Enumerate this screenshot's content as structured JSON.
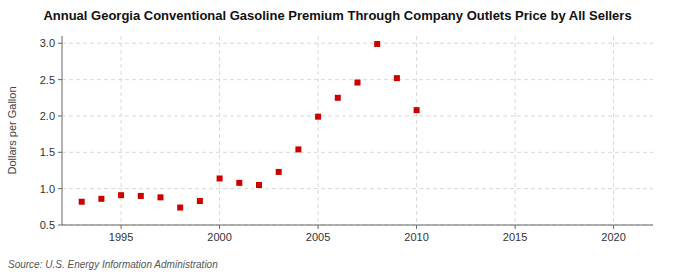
{
  "chart_data": {
    "type": "scatter",
    "title": "Annual Georgia Conventional Gasoline Premium Through Company Outlets Price by All Sellers",
    "ylabel": "Dollars per Gallon",
    "source": "Source: U.S. Energy Information Administration",
    "x": [
      1993,
      1994,
      1995,
      1996,
      1997,
      1998,
      1999,
      2000,
      2001,
      2002,
      2003,
      2004,
      2005,
      2006,
      2007,
      2008,
      2009,
      2010
    ],
    "values": [
      0.82,
      0.86,
      0.91,
      0.9,
      0.88,
      0.74,
      0.83,
      1.14,
      1.08,
      1.05,
      1.23,
      1.54,
      1.99,
      2.25,
      2.46,
      2.99,
      2.52,
      2.08
    ],
    "color": "#cc0000",
    "marker": "square",
    "xlim": [
      1992,
      2022
    ],
    "ylim": [
      0.5,
      3.1
    ],
    "xticks": [
      1995,
      2000,
      2005,
      2010,
      2015,
      2020
    ],
    "yticks": [
      0.5,
      {
        "value": 1.0,
        "label": "1.0"
      },
      1.5,
      {
        "value": 2.0,
        "label": "2.0"
      },
      2.5,
      {
        "value": 3.0,
        "label": "3.0"
      }
    ],
    "grid": true
  }
}
